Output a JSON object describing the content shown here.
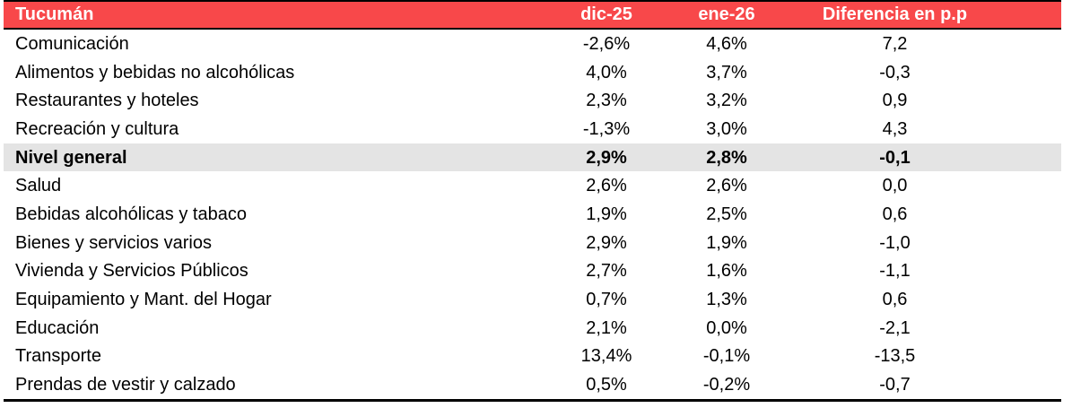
{
  "colors": {
    "header_bg": "#F8484A",
    "header_text": "#FFFFFF",
    "highlight_bg": "#E4E4E4",
    "border": "#000000",
    "body_text": "#000000"
  },
  "chart_data": {
    "type": "table",
    "title": "Tucumán",
    "legend_position": "none",
    "grid": false,
    "columns": [
      "Tucumán",
      "dic-25",
      "ene-26",
      "Diferencia en p.p"
    ],
    "rows": [
      {
        "label": "Comunicación",
        "dic25": "-2,6%",
        "ene26": "4,6%",
        "diff": "7,2",
        "highlight": false
      },
      {
        "label": "Alimentos y bebidas no alcohólicas",
        "dic25": "4,0%",
        "ene26": "3,7%",
        "diff": "-0,3",
        "highlight": false
      },
      {
        "label": "Restaurantes y hoteles",
        "dic25": "2,3%",
        "ene26": "3,2%",
        "diff": "0,9",
        "highlight": false
      },
      {
        "label": "Recreación y cultura",
        "dic25": "-1,3%",
        "ene26": "3,0%",
        "diff": "4,3",
        "highlight": false
      },
      {
        "label": "Nivel general",
        "dic25": "2,9%",
        "ene26": "2,8%",
        "diff": "-0,1",
        "highlight": true
      },
      {
        "label": "Salud",
        "dic25": "2,6%",
        "ene26": "2,6%",
        "diff": "0,0",
        "highlight": false
      },
      {
        "label": "Bebidas alcohólicas y tabaco",
        "dic25": "1,9%",
        "ene26": "2,5%",
        "diff": "0,6",
        "highlight": false
      },
      {
        "label": "Bienes y servicios varios",
        "dic25": "2,9%",
        "ene26": "1,9%",
        "diff": "-1,0",
        "highlight": false
      },
      {
        "label": "Vivienda y Servicios Públicos",
        "dic25": "2,7%",
        "ene26": "1,6%",
        "diff": "-1,1",
        "highlight": false
      },
      {
        "label": "Equipamiento y Mant. del Hogar",
        "dic25": "0,7%",
        "ene26": "1,3%",
        "diff": "0,6",
        "highlight": false
      },
      {
        "label": "Educación",
        "dic25": "2,1%",
        "ene26": "0,0%",
        "diff": "-2,1",
        "highlight": false
      },
      {
        "label": "Transporte",
        "dic25": "13,4%",
        "ene26": "-0,1%",
        "diff": "-13,5",
        "highlight": false
      },
      {
        "label": "Prendas de vestir y calzado",
        "dic25": "0,5%",
        "ene26": "-0,2%",
        "diff": "-0,7",
        "highlight": false
      }
    ]
  }
}
